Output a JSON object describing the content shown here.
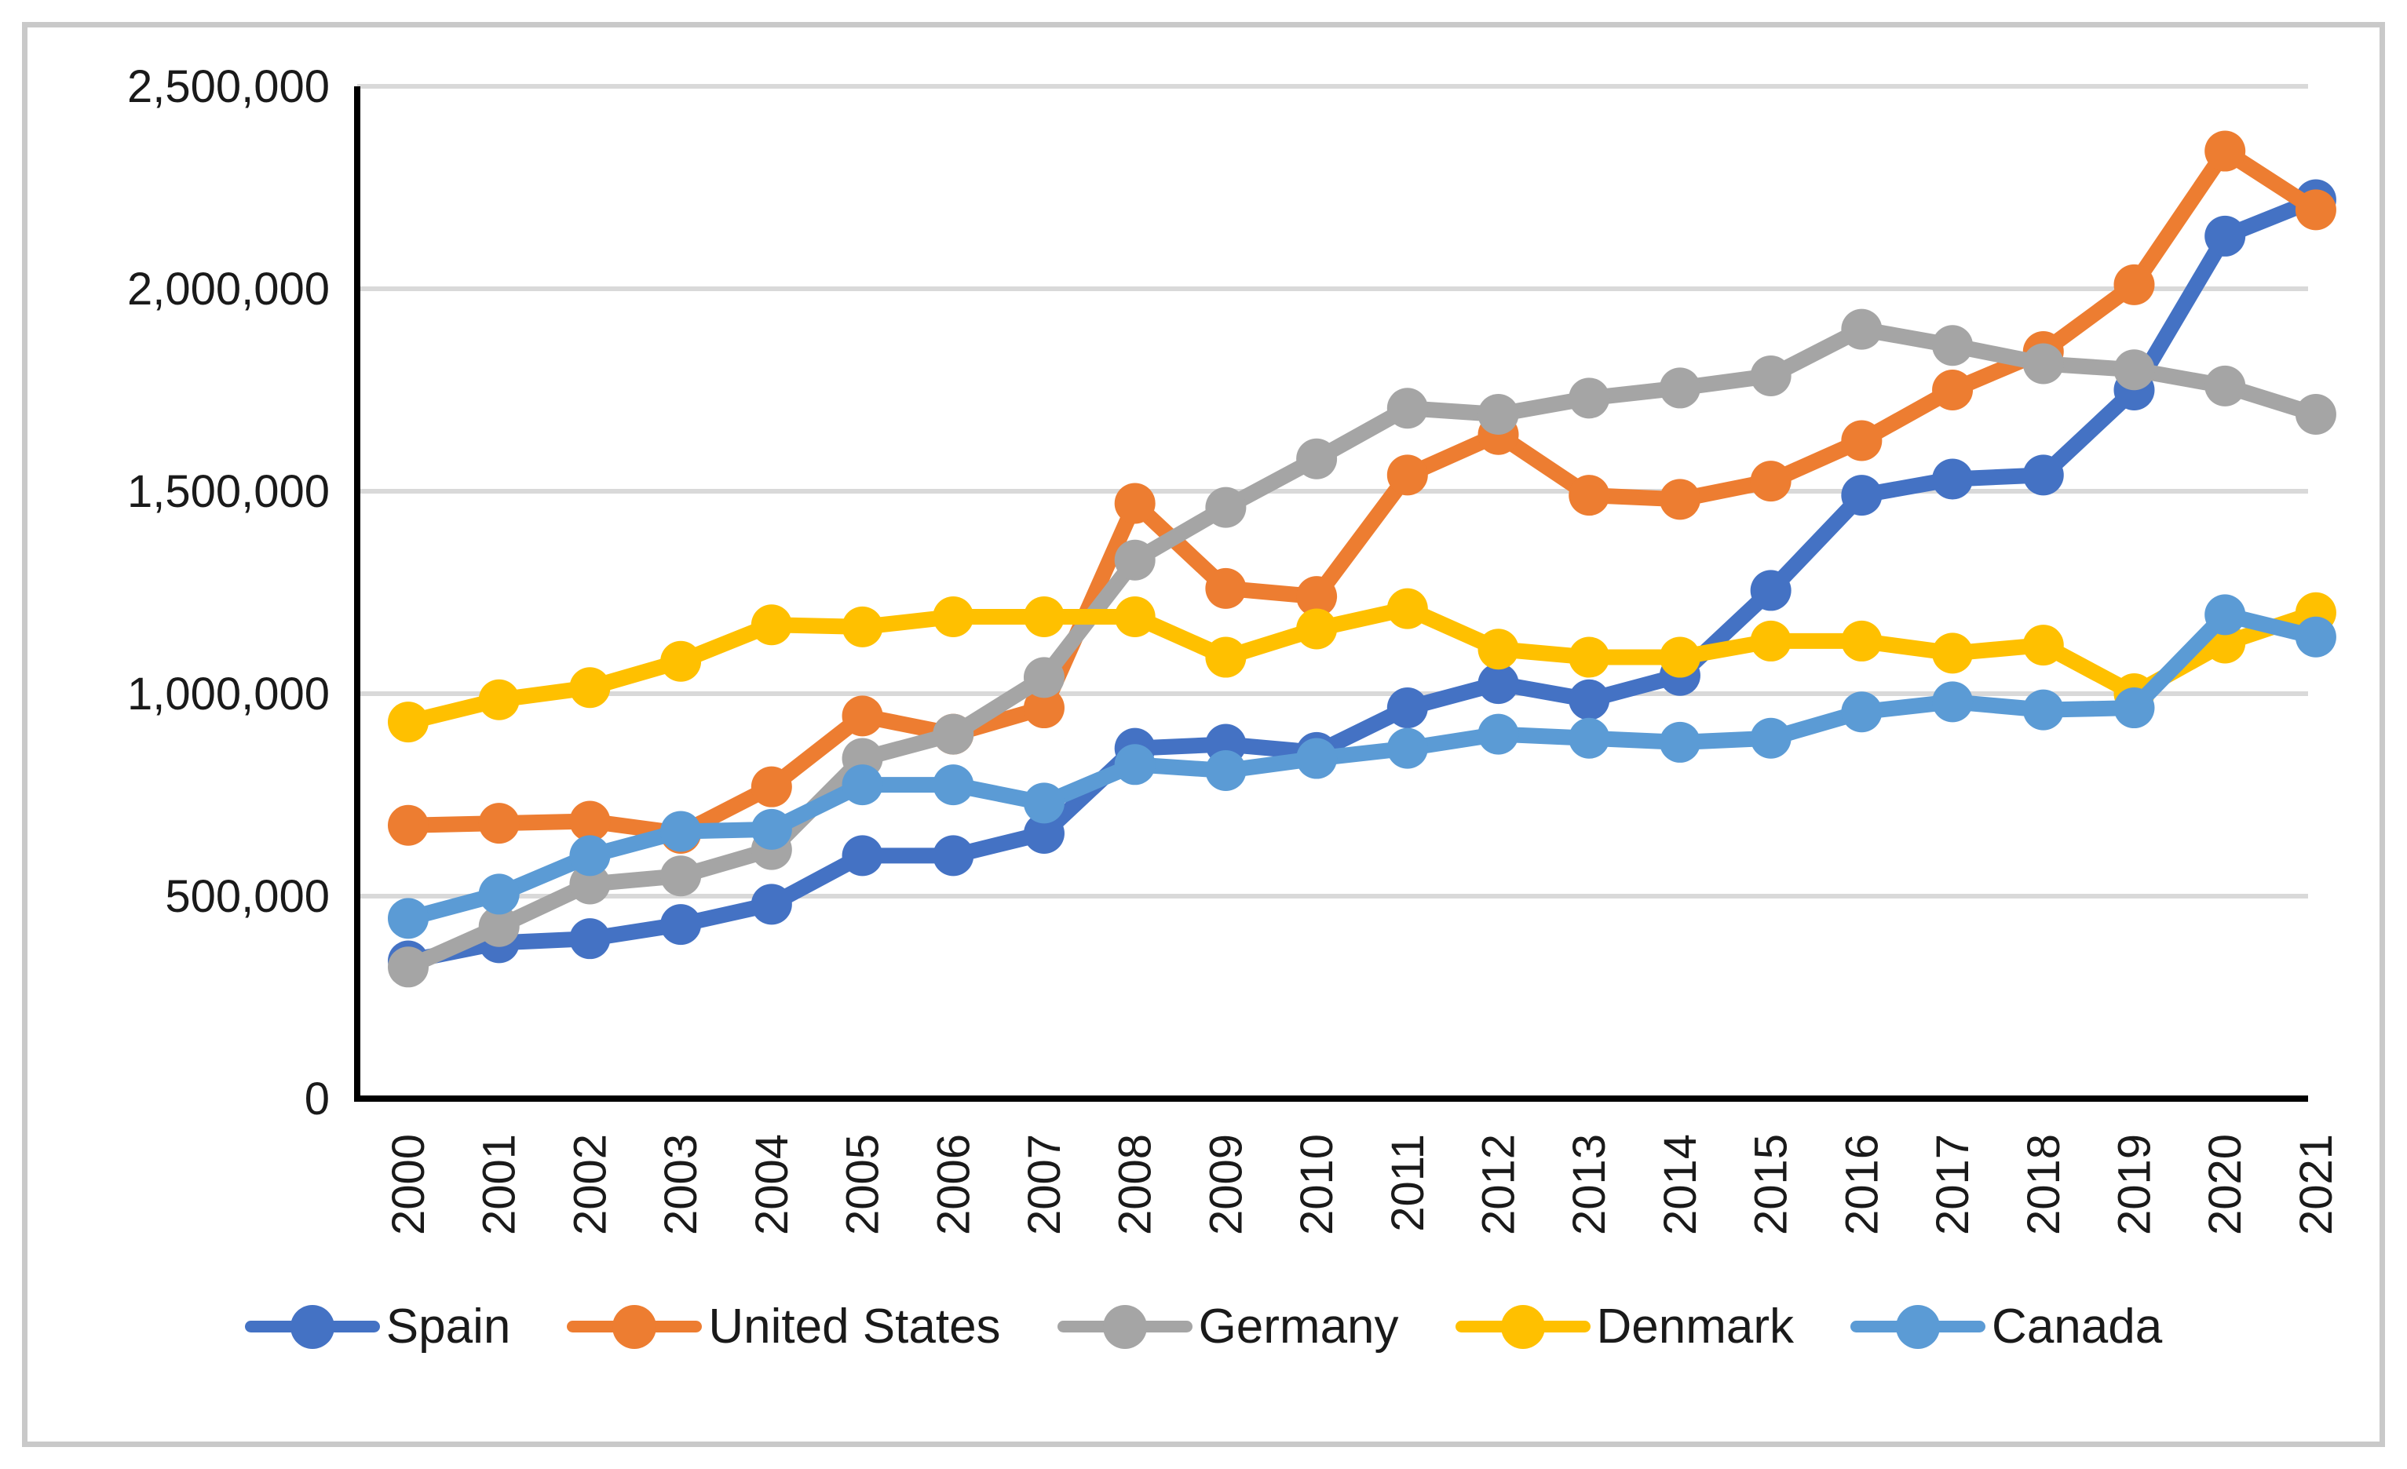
{
  "chart_data": {
    "type": "line",
    "title": "",
    "xlabel": "",
    "ylabel": "",
    "x": [
      2000,
      2001,
      2002,
      2003,
      2004,
      2005,
      2006,
      2007,
      2008,
      2009,
      2010,
      2011,
      2012,
      2013,
      2014,
      2015,
      2016,
      2017,
      2018,
      2019,
      2020,
      2021
    ],
    "series": [
      {
        "name": "Spain",
        "color": "#4472C4",
        "values": [
          340000,
          385000,
          395000,
          430000,
          480000,
          600000,
          600000,
          655000,
          865000,
          875000,
          855000,
          965000,
          1025000,
          985000,
          1045000,
          1255000,
          1490000,
          1530000,
          1540000,
          1750000,
          2130000,
          2220000
        ]
      },
      {
        "name": "United States",
        "color": "#ED7D31",
        "values": [
          675000,
          680000,
          685000,
          655000,
          770000,
          945000,
          900000,
          965000,
          1470000,
          1260000,
          1240000,
          1540000,
          1640000,
          1490000,
          1480000,
          1525000,
          1625000,
          1750000,
          1845000,
          2010000,
          2340000,
          2195000
        ]
      },
      {
        "name": "Germany",
        "color": "#A5A5A5",
        "values": [
          325000,
          425000,
          530000,
          550000,
          615000,
          840000,
          900000,
          1040000,
          1330000,
          1460000,
          1580000,
          1705000,
          1690000,
          1730000,
          1755000,
          1785000,
          1900000,
          1860000,
          1815000,
          1800000,
          1760000,
          1690000
        ]
      },
      {
        "name": "Denmark",
        "color": "#FFC000",
        "values": [
          930000,
          985000,
          1015000,
          1080000,
          1170000,
          1165000,
          1190000,
          1190000,
          1190000,
          1090000,
          1160000,
          1210000,
          1110000,
          1090000,
          1090000,
          1130000,
          1130000,
          1100000,
          1120000,
          1000000,
          1125000,
          1200000
        ]
      },
      {
        "name": "Canada",
        "color": "#5B9BD5",
        "values": [
          445000,
          505000,
          600000,
          660000,
          665000,
          775000,
          775000,
          730000,
          825000,
          810000,
          840000,
          865000,
          900000,
          890000,
          880000,
          890000,
          955000,
          980000,
          960000,
          965000,
          1195000,
          1140000
        ]
      }
    ],
    "ylim": [
      0,
      2500000
    ],
    "ytick_step": 500000,
    "y_tick_labels": [
      "0",
      "500,000",
      "1,000,000",
      "1,500,000",
      "2,000,000",
      "2,500,000"
    ],
    "grid": true,
    "legend_position": "bottom",
    "axis_color": "#000000",
    "gridline_color": "#d9d9d9",
    "tick_label_color": "#1a1a1a"
  }
}
